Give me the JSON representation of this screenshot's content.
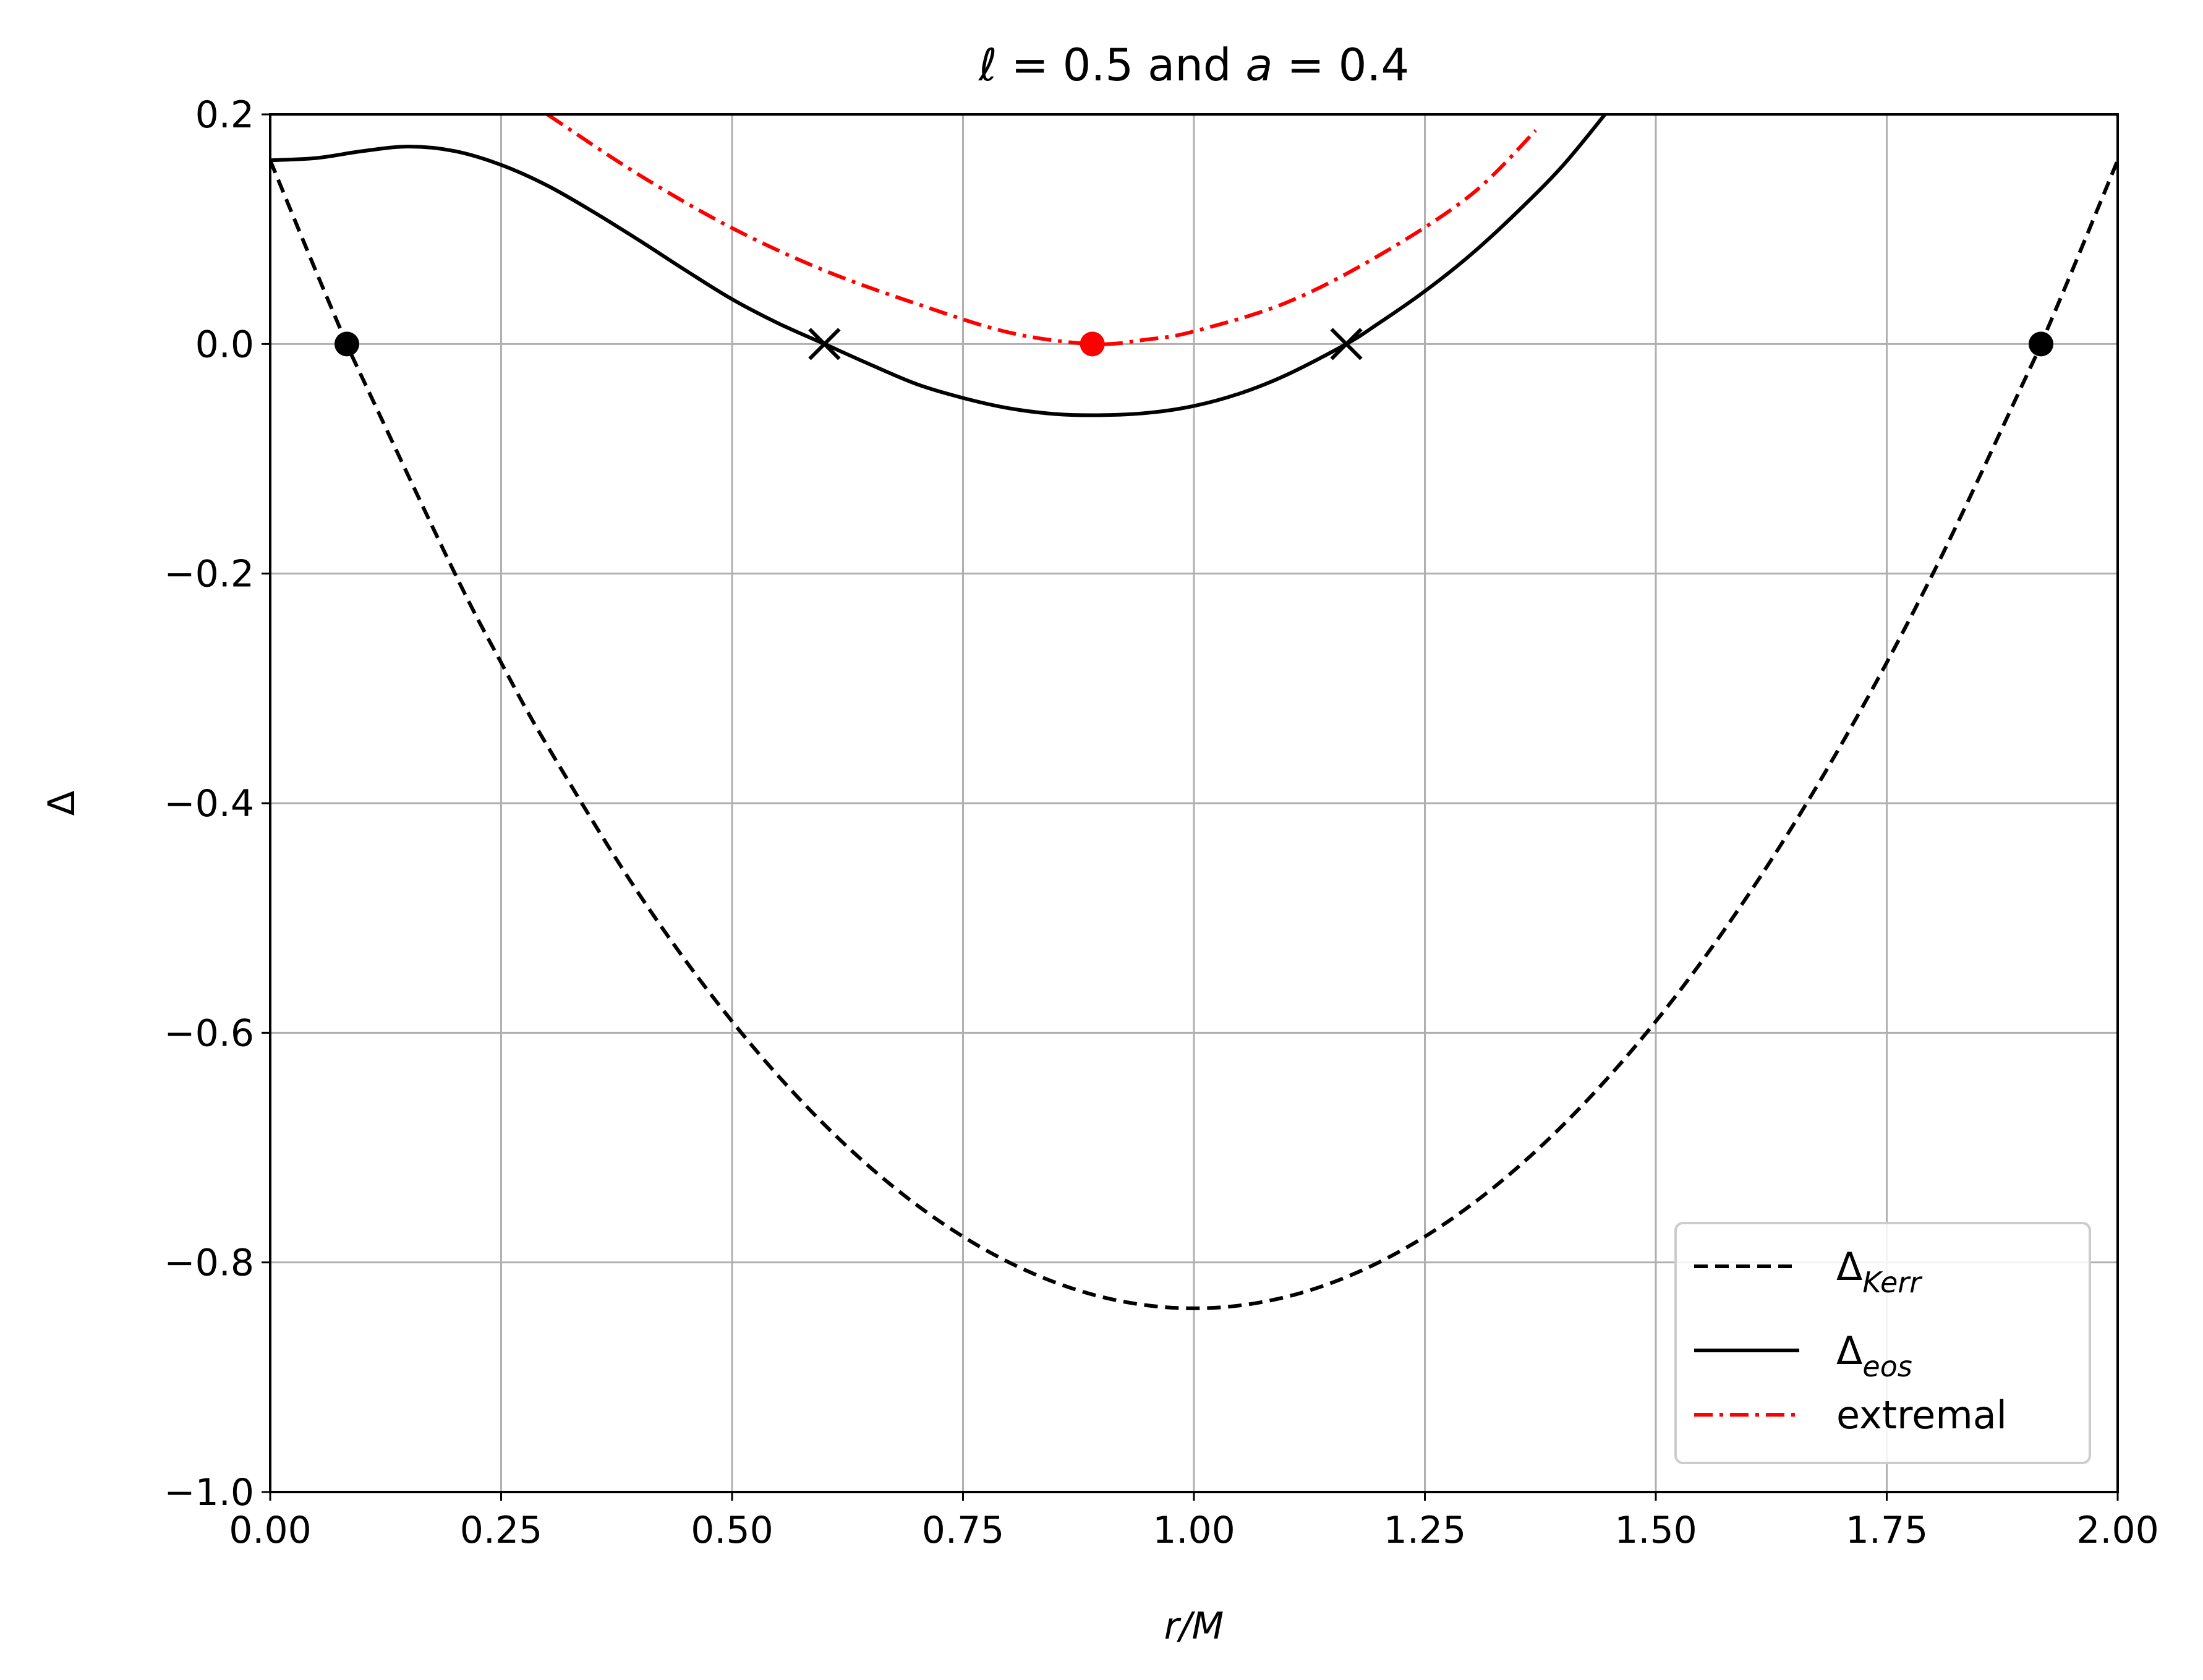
{
  "chart_data": {
    "type": "line",
    "title": {
      "symbol1": "ℓ",
      "eq1": " = 0.5 and ",
      "symbol2": "a",
      "eq2": " = 0.4"
    },
    "xlabel": "r/M",
    "ylabel": "Δ",
    "xlim": [
      0,
      2
    ],
    "ylim": [
      -1,
      0.2
    ],
    "x_ticks": [
      "0.00",
      "0.25",
      "0.50",
      "0.75",
      "1.00",
      "1.25",
      "1.50",
      "1.75",
      "2.00"
    ],
    "y_ticks": [
      "0.2",
      "0.0",
      "−0.2",
      "−0.4",
      "−0.6",
      "−0.8",
      "−1.0"
    ],
    "grid": true,
    "legend_position": "lower right",
    "legend": [
      {
        "base": "Δ",
        "sub": "Kerr",
        "style": "dashed",
        "color": "#000000"
      },
      {
        "base": "Δ",
        "sub": "eos",
        "style": "solid",
        "color": "#000000"
      },
      {
        "base": "",
        "sub": "",
        "text": "extremal",
        "style": "dashdot",
        "color": "#ff0000"
      }
    ],
    "series": [
      {
        "style": "dashed",
        "color": "#000000",
        "x": [
          0.0,
          0.05,
          0.083,
          0.1,
          0.2,
          0.25,
          0.3,
          0.4,
          0.5,
          0.6,
          0.7,
          0.8,
          0.9,
          1.0,
          1.1,
          1.2,
          1.3,
          1.4,
          1.5,
          1.6,
          1.7,
          1.8,
          1.9,
          1.917,
          1.95,
          2.0
        ],
        "y": [
          0.16,
          0.0625,
          0.0,
          -0.03,
          -0.2,
          -0.2775,
          -0.35,
          -0.48,
          -0.59,
          -0.68,
          -0.75,
          -0.8,
          -0.83,
          -0.84,
          -0.83,
          -0.8,
          -0.75,
          -0.68,
          -0.59,
          -0.48,
          -0.35,
          -0.2,
          -0.03,
          0.0,
          0.0625,
          0.16
        ]
      },
      {
        "style": "solid",
        "color": "#000000",
        "x": [
          0.0,
          0.05,
          0.1,
          0.15,
          0.2,
          0.25,
          0.3,
          0.35,
          0.4,
          0.45,
          0.5,
          0.55,
          0.6,
          0.65,
          0.7,
          0.75,
          0.8,
          0.85,
          0.9,
          0.95,
          1.0,
          1.05,
          1.1,
          1.165,
          1.2,
          1.25,
          1.3,
          1.35,
          1.4,
          1.45
        ],
        "y": [
          0.16,
          0.162,
          0.168,
          0.172,
          0.168,
          0.156,
          0.138,
          0.115,
          0.09,
          0.064,
          0.039,
          0.018,
          0.0,
          -0.018,
          -0.035,
          -0.047,
          -0.056,
          -0.061,
          -0.062,
          -0.06,
          -0.054,
          -0.043,
          -0.027,
          0.0,
          0.018,
          0.046,
          0.078,
          0.115,
          0.156,
          0.205
        ]
      },
      {
        "style": "dashdot",
        "color": "#ff0000",
        "x": [
          0.3,
          0.4,
          0.5,
          0.6,
          0.7,
          0.8,
          0.89,
          0.95,
          1.0,
          1.1,
          1.2,
          1.3,
          1.37
        ],
        "y": [
          0.2,
          0.147,
          0.101,
          0.064,
          0.035,
          0.01,
          0.0,
          0.004,
          0.011,
          0.036,
          0.077,
          0.13,
          0.186
        ]
      }
    ],
    "markers": [
      {
        "type": "dot",
        "x": 0.083,
        "y": 0.0,
        "color": "#000000"
      },
      {
        "type": "dot",
        "x": 1.917,
        "y": 0.0,
        "color": "#000000"
      },
      {
        "type": "cross",
        "x": 0.6,
        "y": 0.0,
        "color": "#000000"
      },
      {
        "type": "cross",
        "x": 1.165,
        "y": 0.0,
        "color": "#000000"
      },
      {
        "type": "dot",
        "x": 0.89,
        "y": 0.0,
        "color": "#ff0000"
      }
    ]
  }
}
